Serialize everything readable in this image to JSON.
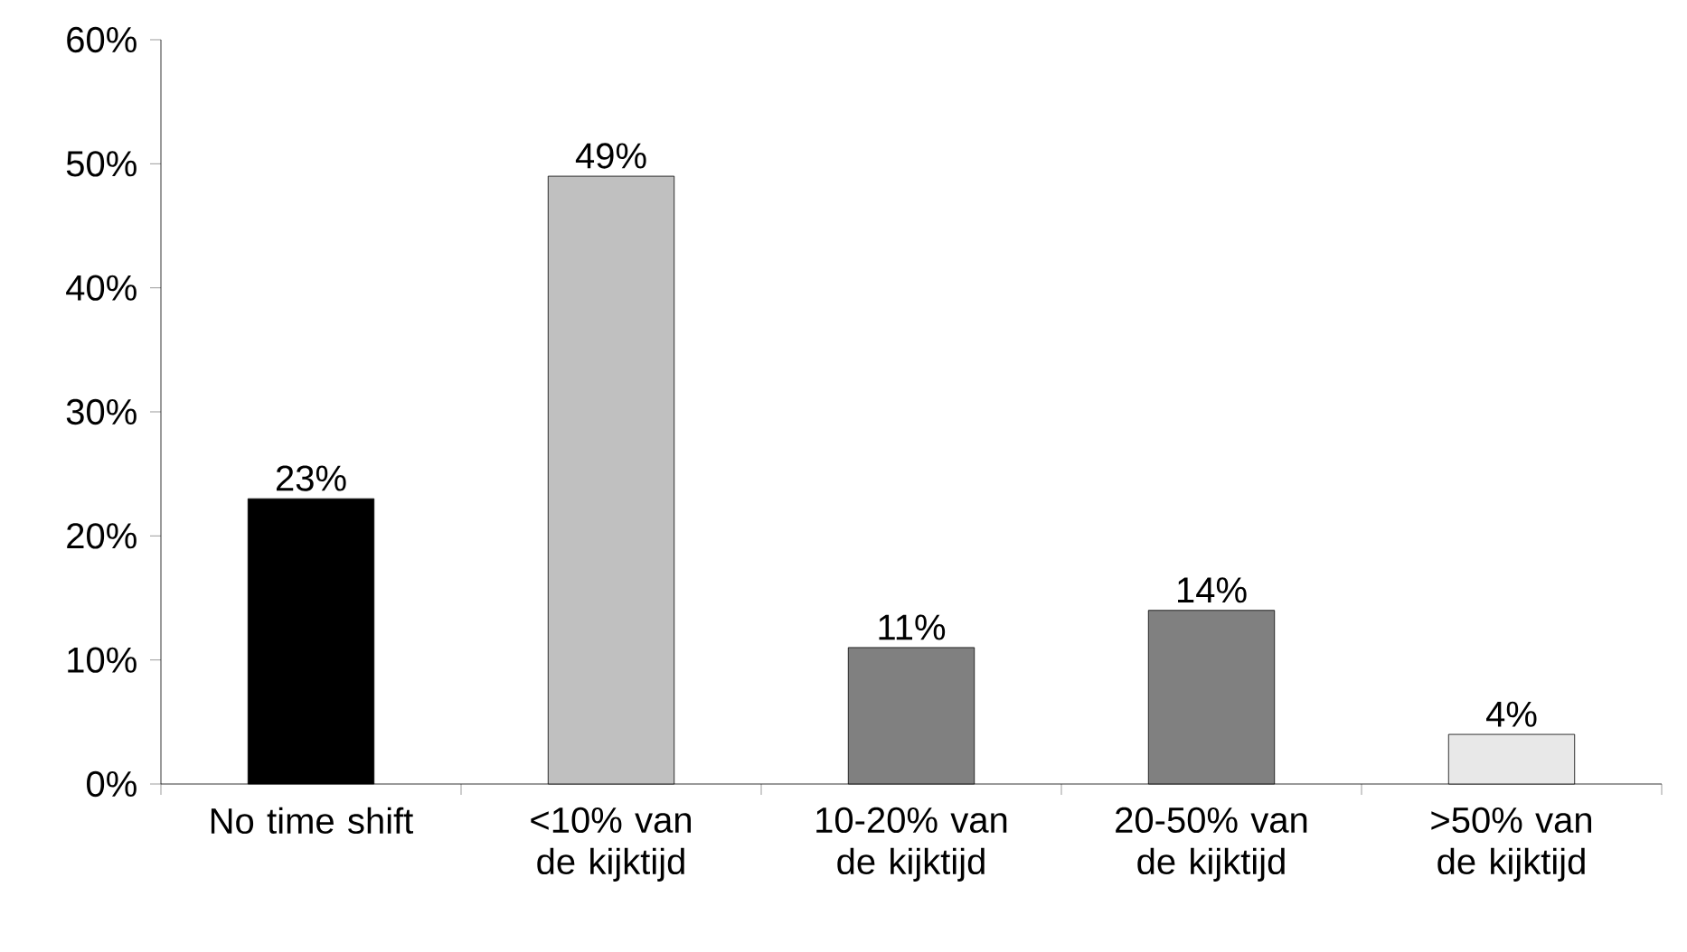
{
  "chart_data": {
    "type": "bar",
    "categories": [
      "No time shift",
      "<10% van de kijktijd",
      "10-20% van de kijktijd",
      "20-50% van de kijktijd",
      ">50% van de kijktijd"
    ],
    "values": [
      23,
      49,
      11,
      14,
      4
    ],
    "value_labels": [
      "23%",
      "49%",
      "11%",
      "14%",
      "4%"
    ],
    "colors": [
      "#000000",
      "#c0c0c0",
      "#808080",
      "#808080",
      "#e8e8e8"
    ],
    "ylim": [
      0,
      60
    ],
    "yticks": [
      {
        "value": 0,
        "label": "0%"
      },
      {
        "value": 10,
        "label": "10%"
      },
      {
        "value": 20,
        "label": "20%"
      },
      {
        "value": 30,
        "label": "30%"
      },
      {
        "value": 40,
        "label": "40%"
      },
      {
        "value": 50,
        "label": "50%"
      },
      {
        "value": 60,
        "label": "60%"
      }
    ],
    "grid": false
  }
}
